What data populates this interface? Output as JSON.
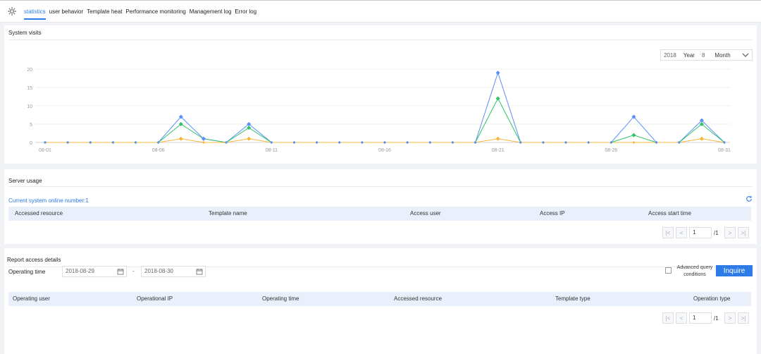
{
  "tabs": [
    "statistics",
    "user behavior",
    "Template heat",
    "Performance monitoring",
    "Management log",
    "Error log"
  ],
  "visits": {
    "title": "System visits",
    "year": "2018",
    "year_label": "Year",
    "month": "8",
    "month_label": "Month"
  },
  "chart_data": {
    "type": "line",
    "x": [
      "08-01",
      "08-02",
      "08-03",
      "08-04",
      "08-05",
      "08-06",
      "08-07",
      "08-08",
      "08-09",
      "08-10",
      "08-11",
      "08-12",
      "08-13",
      "08-14",
      "08-15",
      "08-16",
      "08-17",
      "08-18",
      "08-19",
      "08-20",
      "08-21",
      "08-22",
      "08-23",
      "08-24",
      "08-25",
      "08-26",
      "08-27",
      "08-28",
      "08-29",
      "08-30",
      "08-31"
    ],
    "x_tick_labels": [
      "08-01",
      "08-06",
      "08-11",
      "08-16",
      "08-21",
      "08-26",
      "08-31"
    ],
    "ylim": [
      0,
      20
    ],
    "y_ticks": [
      0,
      5,
      10,
      15,
      20
    ],
    "grid": true,
    "series": [
      {
        "color": "#5b8ff9",
        "values": [
          0,
          0,
          0,
          0,
          0,
          0,
          7,
          1,
          0,
          5,
          0,
          0,
          0,
          0,
          0,
          0,
          0,
          0,
          0,
          0,
          19,
          0,
          0,
          0,
          0,
          0,
          7,
          0,
          0,
          6,
          0
        ]
      },
      {
        "color": "#30c46a",
        "values": [
          0,
          0,
          0,
          0,
          0,
          0,
          5,
          1,
          0,
          4,
          0,
          0,
          0,
          0,
          0,
          0,
          0,
          0,
          0,
          0,
          12,
          0,
          0,
          0,
          0,
          0,
          2,
          0,
          0,
          5,
          0
        ]
      },
      {
        "color": "#f7b53b",
        "values": [
          0,
          0,
          0,
          0,
          0,
          0,
          1,
          0,
          0,
          1,
          0,
          0,
          0,
          0,
          0,
          0,
          0,
          0,
          0,
          0,
          1,
          0,
          0,
          0,
          0,
          0,
          0,
          0,
          0,
          1,
          0
        ]
      }
    ]
  },
  "server": {
    "title": "Server usage",
    "online_text": "Current system online number:1",
    "columns": [
      "Accessed resource",
      "Template name",
      "Access user",
      "Access IP",
      "Access start time"
    ],
    "page": "1",
    "total": "/1"
  },
  "report": {
    "title": "Report access details",
    "op_time_label": "Operating time",
    "date_from": "2018-08-29",
    "date_to": "2018-08-30",
    "dash": "-",
    "advanced": "Advanced query conditions",
    "inquire": "Inquire",
    "columns": [
      "Operating user",
      "Operational IP",
      "Operating time",
      "Accessed resource",
      "Template type",
      "Operation type"
    ],
    "page": "1",
    "total": "/1"
  }
}
